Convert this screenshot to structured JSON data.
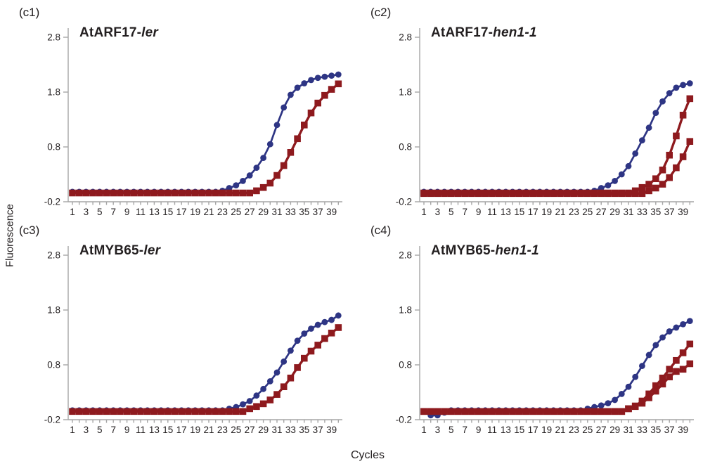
{
  "figure": {
    "ylabel": "Fluorescence",
    "xlabel": "Cycles"
  },
  "style": {
    "blue": "#2e3584",
    "red": "#8e1a1e",
    "axis_color": "#a6a6a6",
    "text_color": "#231f20",
    "background": "#ffffff"
  },
  "axes": {
    "y_tick_labels": [
      "2.8",
      "1.8",
      "0.8",
      "-0.2"
    ],
    "y_tick_values": [
      2.8,
      1.8,
      0.8,
      -0.2
    ],
    "x_tick_labels": [
      1,
      3,
      5,
      7,
      9,
      11,
      13,
      15,
      17,
      19,
      21,
      23,
      25,
      27,
      29,
      31,
      33,
      35,
      37,
      39
    ],
    "x_min": 1,
    "x_max": 40,
    "y_min": -0.2,
    "y_axis_top_value": 2.97,
    "grid": "off",
    "legend": "none"
  },
  "cycles": [
    1,
    2,
    3,
    4,
    5,
    6,
    7,
    8,
    9,
    10,
    11,
    12,
    13,
    14,
    15,
    16,
    17,
    18,
    19,
    20,
    21,
    22,
    23,
    24,
    25,
    26,
    27,
    28,
    29,
    30,
    31,
    32,
    33,
    34,
    35,
    36,
    37,
    38,
    39,
    40
  ],
  "chart_data": [
    {
      "id": "c1",
      "panel_label": "(c1)",
      "title": "AtARF17-ler",
      "title_roman": "AtARF17-",
      "title_italic": "ler",
      "type": "line",
      "xlabel": "Cycles",
      "ylabel": "Fluorescence",
      "xlim": [
        1,
        40
      ],
      "ylim": [
        -0.2,
        2.97
      ],
      "series": [
        {
          "name": "blue-circles",
          "marker": "circle",
          "color_key": "blue",
          "values": [
            -0.02,
            -0.02,
            -0.02,
            -0.02,
            -0.02,
            -0.02,
            -0.02,
            -0.02,
            -0.02,
            -0.02,
            -0.02,
            -0.02,
            -0.02,
            -0.02,
            -0.02,
            -0.02,
            -0.02,
            -0.02,
            -0.02,
            -0.02,
            -0.02,
            -0.02,
            0.0,
            0.05,
            0.1,
            0.18,
            0.28,
            0.42,
            0.6,
            0.85,
            1.2,
            1.52,
            1.75,
            1.88,
            1.96,
            2.02,
            2.06,
            2.08,
            2.1,
            2.12
          ]
        },
        {
          "name": "red-squares",
          "marker": "square",
          "color_key": "red",
          "values": [
            -0.04,
            -0.04,
            -0.04,
            -0.04,
            -0.04,
            -0.04,
            -0.04,
            -0.04,
            -0.04,
            -0.04,
            -0.04,
            -0.04,
            -0.04,
            -0.04,
            -0.04,
            -0.04,
            -0.04,
            -0.04,
            -0.04,
            -0.04,
            -0.04,
            -0.04,
            -0.04,
            -0.04,
            -0.04,
            -0.04,
            -0.04,
            0.0,
            0.06,
            0.14,
            0.28,
            0.46,
            0.7,
            0.95,
            1.2,
            1.42,
            1.6,
            1.74,
            1.85,
            1.95
          ]
        }
      ]
    },
    {
      "id": "c2",
      "panel_label": "(c2)",
      "title": "AtARF17-hen1-1",
      "title_roman": "AtARF17-",
      "title_italic": "hen1-1",
      "type": "line",
      "xlabel": "Cycles",
      "ylabel": "Fluorescence",
      "xlim": [
        1,
        40
      ],
      "ylim": [
        -0.2,
        2.97
      ],
      "series": [
        {
          "name": "blue-circles",
          "marker": "circle",
          "color_key": "blue",
          "values": [
            -0.02,
            -0.02,
            -0.02,
            -0.02,
            -0.02,
            -0.02,
            -0.02,
            -0.02,
            -0.02,
            -0.02,
            -0.02,
            -0.02,
            -0.02,
            -0.02,
            -0.02,
            -0.02,
            -0.02,
            -0.02,
            -0.02,
            -0.02,
            -0.02,
            -0.02,
            -0.02,
            -0.02,
            -0.02,
            0.0,
            0.05,
            0.1,
            0.18,
            0.3,
            0.45,
            0.68,
            0.92,
            1.15,
            1.42,
            1.63,
            1.78,
            1.88,
            1.93,
            1.96
          ]
        },
        {
          "name": "red-squares-1",
          "marker": "square",
          "color_key": "red",
          "values": [
            -0.04,
            -0.04,
            -0.04,
            -0.04,
            -0.04,
            -0.04,
            -0.04,
            -0.04,
            -0.04,
            -0.04,
            -0.04,
            -0.04,
            -0.04,
            -0.04,
            -0.04,
            -0.04,
            -0.04,
            -0.04,
            -0.04,
            -0.04,
            -0.04,
            -0.04,
            -0.04,
            -0.04,
            -0.04,
            -0.04,
            -0.04,
            -0.04,
            -0.04,
            -0.04,
            -0.04,
            0.0,
            0.06,
            0.12,
            0.22,
            0.38,
            0.65,
            1.0,
            1.38,
            1.68
          ]
        },
        {
          "name": "red-squares-2",
          "marker": "square",
          "color_key": "red",
          "values": [
            -0.05,
            -0.05,
            -0.05,
            -0.05,
            -0.05,
            -0.05,
            -0.05,
            -0.05,
            -0.05,
            -0.05,
            -0.05,
            -0.05,
            -0.05,
            -0.05,
            -0.05,
            -0.05,
            -0.05,
            -0.05,
            -0.05,
            -0.05,
            -0.05,
            -0.05,
            -0.05,
            -0.05,
            -0.05,
            -0.05,
            -0.05,
            -0.05,
            -0.05,
            -0.05,
            -0.05,
            -0.05,
            -0.05,
            0.0,
            0.05,
            0.12,
            0.24,
            0.42,
            0.62,
            0.9
          ]
        }
      ]
    },
    {
      "id": "c3",
      "panel_label": "(c3)",
      "title": "AtMYB65-ler",
      "title_roman": "AtMYB65-",
      "title_italic": "ler",
      "type": "line",
      "xlabel": "Cycles",
      "ylabel": "Fluorescence",
      "xlim": [
        1,
        40
      ],
      "ylim": [
        -0.2,
        2.97
      ],
      "series": [
        {
          "name": "blue-circles",
          "marker": "circle",
          "color_key": "blue",
          "values": [
            -0.03,
            -0.03,
            -0.03,
            -0.03,
            -0.03,
            -0.03,
            -0.03,
            -0.03,
            -0.03,
            -0.03,
            -0.03,
            -0.03,
            -0.03,
            -0.03,
            -0.03,
            -0.03,
            -0.03,
            -0.03,
            -0.03,
            -0.03,
            -0.03,
            -0.03,
            -0.03,
            0.0,
            0.03,
            0.08,
            0.14,
            0.24,
            0.36,
            0.5,
            0.66,
            0.86,
            1.06,
            1.24,
            1.37,
            1.46,
            1.53,
            1.58,
            1.62,
            1.7
          ]
        },
        {
          "name": "red-squares",
          "marker": "square",
          "color_key": "red",
          "values": [
            -0.05,
            -0.05,
            -0.05,
            -0.05,
            -0.05,
            -0.05,
            -0.05,
            -0.05,
            -0.05,
            -0.05,
            -0.05,
            -0.05,
            -0.05,
            -0.05,
            -0.05,
            -0.05,
            -0.05,
            -0.05,
            -0.05,
            -0.05,
            -0.05,
            -0.05,
            -0.05,
            -0.05,
            -0.05,
            -0.05,
            0.0,
            0.04,
            0.09,
            0.16,
            0.26,
            0.4,
            0.56,
            0.75,
            0.92,
            1.05,
            1.16,
            1.28,
            1.38,
            1.48
          ]
        }
      ]
    },
    {
      "id": "c4",
      "panel_label": "(c4)",
      "title": "AtMYB65-hen1-1",
      "title_roman": "AtMYB65-",
      "title_italic": "hen1-1",
      "type": "line",
      "xlabel": "Cycles",
      "ylabel": "Fluorescence",
      "xlim": [
        1,
        40
      ],
      "ylim": [
        -0.2,
        2.97
      ],
      "series": [
        {
          "name": "blue-circles",
          "marker": "circle",
          "color_key": "blue",
          "values": [
            -0.05,
            -0.12,
            -0.12,
            -0.07,
            -0.03,
            -0.03,
            -0.03,
            -0.03,
            -0.03,
            -0.03,
            -0.03,
            -0.03,
            -0.03,
            -0.03,
            -0.03,
            -0.03,
            -0.03,
            -0.03,
            -0.03,
            -0.03,
            -0.03,
            -0.03,
            -0.03,
            -0.03,
            0.0,
            0.03,
            0.06,
            0.1,
            0.16,
            0.27,
            0.4,
            0.58,
            0.78,
            0.98,
            1.16,
            1.3,
            1.41,
            1.48,
            1.54,
            1.6
          ]
        },
        {
          "name": "red-squares-1",
          "marker": "square",
          "color_key": "red",
          "values": [
            -0.05,
            -0.05,
            -0.05,
            -0.05,
            -0.05,
            -0.05,
            -0.05,
            -0.05,
            -0.05,
            -0.05,
            -0.05,
            -0.05,
            -0.05,
            -0.05,
            -0.05,
            -0.05,
            -0.05,
            -0.05,
            -0.05,
            -0.05,
            -0.05,
            -0.05,
            -0.05,
            -0.05,
            -0.05,
            -0.05,
            -0.05,
            -0.05,
            -0.05,
            -0.05,
            0.0,
            0.05,
            0.14,
            0.27,
            0.42,
            0.56,
            0.72,
            0.88,
            1.02,
            1.18
          ]
        },
        {
          "name": "red-squares-2",
          "marker": "square",
          "color_key": "red",
          "values": [
            -0.05,
            -0.05,
            -0.05,
            -0.05,
            -0.05,
            -0.05,
            -0.05,
            -0.05,
            -0.05,
            -0.05,
            -0.05,
            -0.05,
            -0.05,
            -0.05,
            -0.05,
            -0.05,
            -0.05,
            -0.05,
            -0.05,
            -0.05,
            -0.05,
            -0.05,
            -0.05,
            -0.05,
            -0.05,
            -0.05,
            -0.05,
            -0.05,
            -0.05,
            -0.05,
            0.0,
            0.04,
            0.1,
            0.2,
            0.32,
            0.45,
            0.58,
            0.68,
            0.72,
            0.82
          ]
        }
      ]
    }
  ]
}
